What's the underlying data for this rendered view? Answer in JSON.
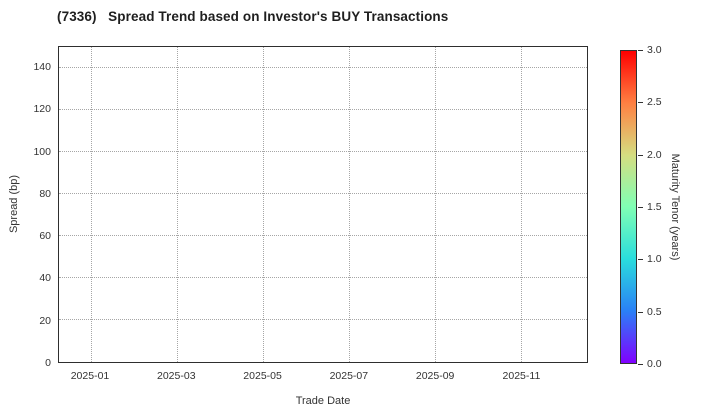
{
  "chart_data": {
    "type": "scatter",
    "title": "(7336)   Spread Trend based on Investor's BUY Transactions",
    "xlabel": "Trade Date",
    "ylabel": "Spread (bp)",
    "x_ticks": [
      "2025-01",
      "2025-03",
      "2025-05",
      "2025-07",
      "2025-09",
      "2025-11"
    ],
    "y_ticks": [
      0,
      20,
      40,
      60,
      80,
      100,
      120,
      140
    ],
    "ylim": [
      0,
      150
    ],
    "grid": "dotted",
    "legend_position": "none",
    "points": [],
    "colorbar": {
      "label": "Maturity Tenor (years)",
      "ticks": [
        "0.0",
        "0.5",
        "1.0",
        "1.5",
        "2.0",
        "2.5",
        "3.0"
      ],
      "tick_values": [
        0.0,
        0.5,
        1.0,
        1.5,
        2.0,
        2.5,
        3.0
      ],
      "range": [
        0.0,
        3.0
      ],
      "colormap": "rainbow",
      "gradient_stops": [
        "#8000ff",
        "#2a80f6",
        "#2adddd",
        "#80ffb4",
        "#d5dd80",
        "#ff8042",
        "#ff0000"
      ]
    }
  }
}
